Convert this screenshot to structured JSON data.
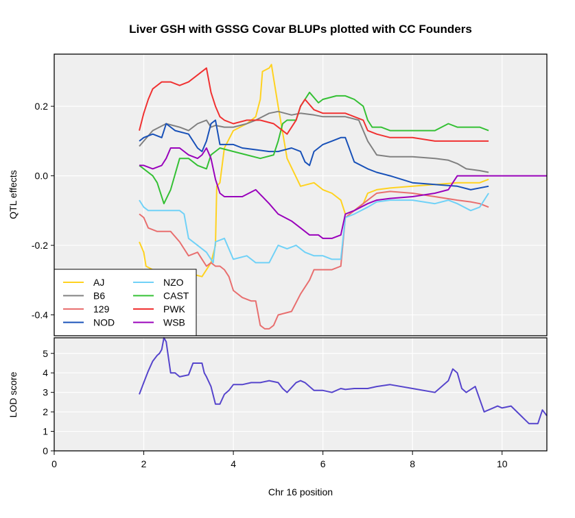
{
  "chart_data": {
    "title": "Liver GSH with GSSG Covar BLUPs plotted with CC Founders",
    "xlabel": "Chr 16 position",
    "xlim": [
      0,
      11
    ],
    "x_ticks": [
      "0",
      "2",
      "4",
      "6",
      "8",
      "10"
    ],
    "grid": true,
    "panels": [
      {
        "name": "effects",
        "type": "line",
        "ylabel": "QTL effects",
        "ylim": [
          -0.46,
          0.35
        ],
        "y_ticks": [
          "0.2",
          "0.0",
          "-0.2",
          "-0.4"
        ],
        "legend_position": "bottom-left",
        "series": [
          {
            "name": "AJ",
            "color": "#FFD21E",
            "x": [
              1.9,
              2.0,
              2.05,
              2.2,
              2.5,
              2.8,
              3.0,
              3.3,
              3.5,
              3.6,
              3.63,
              3.7,
              3.8,
              4.0,
              4.3,
              4.5,
              4.6,
              4.65,
              4.8,
              4.85,
              4.9,
              5.0,
              5.2,
              5.5,
              5.8,
              6.0,
              6.2,
              6.4,
              6.5,
              6.7,
              6.9,
              7.0,
              7.2,
              7.5,
              8.0,
              8.5,
              9.0,
              9.5,
              9.7
            ],
            "y": [
              -0.19,
              -0.22,
              -0.26,
              -0.27,
              -0.28,
              -0.28,
              -0.28,
              -0.29,
              -0.25,
              -0.2,
              -0.03,
              -0.02,
              0.08,
              0.13,
              0.15,
              0.17,
              0.22,
              0.3,
              0.31,
              0.32,
              0.28,
              0.2,
              0.05,
              -0.03,
              -0.02,
              -0.04,
              -0.05,
              -0.07,
              -0.11,
              -0.1,
              -0.08,
              -0.05,
              -0.04,
              -0.035,
              -0.03,
              -0.025,
              -0.02,
              -0.02,
              -0.01
            ]
          },
          {
            "name": "B6",
            "color": "#808080",
            "x": [
              1.9,
              2.0,
              2.2,
              2.5,
              2.8,
              3.0,
              3.2,
              3.4,
              3.5,
              3.6,
              3.8,
              4.0,
              4.3,
              4.5,
              4.8,
              5.0,
              5.3,
              5.5,
              5.8,
              6.0,
              6.3,
              6.5,
              6.8,
              7.0,
              7.2,
              7.5,
              8.0,
              8.5,
              8.8,
              9.0,
              9.2,
              9.5,
              9.7
            ],
            "y": [
              0.085,
              0.1,
              0.13,
              0.15,
              0.14,
              0.13,
              0.15,
              0.16,
              0.14,
              0.145,
              0.14,
              0.14,
              0.15,
              0.16,
              0.18,
              0.185,
              0.175,
              0.18,
              0.175,
              0.17,
              0.17,
              0.17,
              0.16,
              0.1,
              0.06,
              0.055,
              0.055,
              0.05,
              0.045,
              0.035,
              0.02,
              0.015,
              0.01
            ]
          },
          {
            "name": "129",
            "color": "#E86E6E",
            "x": [
              1.9,
              2.0,
              2.1,
              2.3,
              2.6,
              2.8,
              3.0,
              3.2,
              3.4,
              3.5,
              3.6,
              3.7,
              3.8,
              3.9,
              4.0,
              4.2,
              4.4,
              4.5,
              4.6,
              4.7,
              4.8,
              4.9,
              5.0,
              5.3,
              5.5,
              5.7,
              5.8,
              6.0,
              6.2,
              6.4,
              6.5,
              6.7,
              7.0,
              7.2,
              7.5,
              8.0,
              8.5,
              9.0,
              9.3,
              9.5,
              9.7
            ],
            "y": [
              -0.11,
              -0.12,
              -0.15,
              -0.16,
              -0.16,
              -0.19,
              -0.23,
              -0.22,
              -0.26,
              -0.25,
              -0.26,
              -0.26,
              -0.27,
              -0.29,
              -0.33,
              -0.35,
              -0.36,
              -0.36,
              -0.43,
              -0.44,
              -0.44,
              -0.43,
              -0.4,
              -0.39,
              -0.34,
              -0.3,
              -0.27,
              -0.27,
              -0.27,
              -0.26,
              -0.12,
              -0.1,
              -0.07,
              -0.05,
              -0.045,
              -0.05,
              -0.06,
              -0.07,
              -0.075,
              -0.08,
              -0.09
            ]
          },
          {
            "name": "NOD",
            "color": "#1750B8",
            "x": [
              1.9,
              2.0,
              2.2,
              2.4,
              2.5,
              2.7,
              3.0,
              3.2,
              3.3,
              3.4,
              3.5,
              3.6,
              3.7,
              4.0,
              4.2,
              4.5,
              4.8,
              5.0,
              5.3,
              5.5,
              5.6,
              5.7,
              5.8,
              6.0,
              6.2,
              6.4,
              6.5,
              6.7,
              7.0,
              7.2,
              7.5,
              8.0,
              8.5,
              9.0,
              9.3,
              9.7
            ],
            "y": [
              0.1,
              0.11,
              0.12,
              0.11,
              0.15,
              0.13,
              0.12,
              0.08,
              0.07,
              0.1,
              0.15,
              0.16,
              0.09,
              0.09,
              0.08,
              0.075,
              0.07,
              0.07,
              0.08,
              0.07,
              0.04,
              0.03,
              0.07,
              0.09,
              0.1,
              0.11,
              0.11,
              0.04,
              0.02,
              0.01,
              0.0,
              -0.02,
              -0.025,
              -0.03,
              -0.04,
              -0.03
            ]
          },
          {
            "name": "NZO",
            "color": "#6FD1F7",
            "x": [
              1.9,
              2.0,
              2.1,
              2.3,
              2.6,
              2.8,
              2.9,
              3.0,
              3.2,
              3.4,
              3.5,
              3.55,
              3.6,
              3.8,
              4.0,
              4.3,
              4.5,
              4.8,
              5.0,
              5.2,
              5.4,
              5.6,
              5.8,
              6.0,
              6.2,
              6.4,
              6.5,
              6.7,
              7.0,
              7.2,
              7.5,
              8.0,
              8.5,
              8.8,
              9.0,
              9.3,
              9.5,
              9.7
            ],
            "y": [
              -0.07,
              -0.09,
              -0.1,
              -0.1,
              -0.1,
              -0.1,
              -0.11,
              -0.18,
              -0.2,
              -0.22,
              -0.24,
              -0.25,
              -0.19,
              -0.18,
              -0.24,
              -0.23,
              -0.25,
              -0.25,
              -0.2,
              -0.21,
              -0.2,
              -0.22,
              -0.23,
              -0.23,
              -0.24,
              -0.24,
              -0.12,
              -0.11,
              -0.09,
              -0.075,
              -0.07,
              -0.07,
              -0.08,
              -0.07,
              -0.08,
              -0.1,
              -0.09,
              -0.05
            ]
          },
          {
            "name": "CAST",
            "color": "#33C033",
            "x": [
              1.9,
              2.0,
              2.2,
              2.3,
              2.45,
              2.6,
              2.8,
              3.0,
              3.2,
              3.4,
              3.5,
              3.7,
              4.0,
              4.3,
              4.6,
              4.9,
              5.0,
              5.1,
              5.2,
              5.4,
              5.5,
              5.6,
              5.7,
              5.9,
              6.0,
              6.3,
              6.5,
              6.7,
              6.9,
              7.0,
              7.1,
              7.3,
              7.5,
              8.0,
              8.5,
              8.8,
              9.0,
              9.3,
              9.5,
              9.7
            ],
            "y": [
              0.03,
              0.02,
              0.0,
              -0.02,
              -0.08,
              -0.04,
              0.05,
              0.05,
              0.03,
              0.02,
              0.06,
              0.08,
              0.07,
              0.06,
              0.05,
              0.06,
              0.1,
              0.15,
              0.16,
              0.16,
              0.2,
              0.22,
              0.24,
              0.21,
              0.22,
              0.23,
              0.23,
              0.22,
              0.2,
              0.16,
              0.14,
              0.14,
              0.13,
              0.13,
              0.13,
              0.15,
              0.14,
              0.14,
              0.14,
              0.13
            ]
          },
          {
            "name": "PWK",
            "color": "#F03030",
            "x": [
              1.9,
              2.0,
              2.1,
              2.2,
              2.4,
              2.6,
              2.8,
              3.0,
              3.2,
              3.4,
              3.5,
              3.6,
              3.7,
              3.8,
              4.0,
              4.3,
              4.6,
              4.9,
              5.0,
              5.2,
              5.4,
              5.5,
              5.6,
              5.8,
              6.0,
              6.3,
              6.5,
              6.7,
              6.9,
              7.0,
              7.2,
              7.5,
              8.0,
              8.5,
              9.0,
              9.3,
              9.5,
              9.7
            ],
            "y": [
              0.13,
              0.18,
              0.22,
              0.25,
              0.27,
              0.27,
              0.26,
              0.27,
              0.29,
              0.31,
              0.24,
              0.2,
              0.17,
              0.16,
              0.15,
              0.16,
              0.16,
              0.15,
              0.14,
              0.12,
              0.16,
              0.2,
              0.22,
              0.19,
              0.18,
              0.18,
              0.18,
              0.17,
              0.16,
              0.13,
              0.12,
              0.11,
              0.11,
              0.1,
              0.1,
              0.1,
              0.1,
              0.1
            ]
          },
          {
            "name": "WSB",
            "color": "#9900BB",
            "x": [
              1.9,
              2.0,
              2.2,
              2.4,
              2.5,
              2.6,
              2.8,
              3.0,
              3.2,
              3.3,
              3.4,
              3.5,
              3.6,
              3.7,
              3.8,
              4.0,
              4.2,
              4.5,
              4.8,
              5.0,
              5.3,
              5.5,
              5.7,
              5.9,
              6.0,
              6.2,
              6.4,
              6.5,
              6.7,
              7.0,
              7.2,
              7.5,
              8.0,
              8.5,
              8.8,
              8.9,
              9.0,
              9.3,
              9.5,
              9.7
            ],
            "y": [
              0.03,
              0.03,
              0.02,
              0.03,
              0.05,
              0.08,
              0.08,
              0.06,
              0.05,
              0.06,
              0.08,
              0.05,
              -0.01,
              -0.05,
              -0.06,
              -0.06,
              -0.06,
              -0.04,
              -0.08,
              -0.11,
              -0.13,
              -0.15,
              -0.17,
              -0.17,
              -0.18,
              -0.18,
              -0.17,
              -0.11,
              -0.1,
              -0.08,
              -0.07,
              -0.065,
              -0.06,
              -0.05,
              -0.04,
              -0.02,
              0.0,
              0.0,
              0.0,
              0.0
            ]
          }
        ],
        "tail": {
          "from": 9.7,
          "to": 11,
          "y": 0.0,
          "color": "#9900BB"
        }
      },
      {
        "name": "lod",
        "type": "line",
        "ylabel": "LOD score",
        "ylim": [
          0,
          5.8
        ],
        "y_ticks": [
          "5",
          "4",
          "3",
          "2",
          "1",
          "0"
        ],
        "series": [
          {
            "name": "LOD",
            "color": "#5544CC",
            "x": [
              1.9,
              2.0,
              2.1,
              2.2,
              2.3,
              2.35,
              2.4,
              2.45,
              2.5,
              2.55,
              2.6,
              2.7,
              2.8,
              3.0,
              3.1,
              3.2,
              3.3,
              3.35,
              3.4,
              3.5,
              3.6,
              3.7,
              3.8,
              3.9,
              4.0,
              4.2,
              4.4,
              4.6,
              4.8,
              5.0,
              5.1,
              5.2,
              5.4,
              5.5,
              5.6,
              5.7,
              5.8,
              6.0,
              6.2,
              6.4,
              6.5,
              6.7,
              7.0,
              7.2,
              7.5,
              8.0,
              8.5,
              8.8,
              8.9,
              9.0,
              9.1,
              9.2,
              9.4,
              9.6,
              9.8,
              9.9,
              10.0,
              10.2,
              10.6,
              10.8,
              10.9,
              11.0
            ],
            "y": [
              2.9,
              3.5,
              4.1,
              4.6,
              4.9,
              5.0,
              5.2,
              5.8,
              5.6,
              4.8,
              4.0,
              4.0,
              3.8,
              3.9,
              4.5,
              4.5,
              4.5,
              4.0,
              3.8,
              3.3,
              2.4,
              2.4,
              2.9,
              3.1,
              3.4,
              3.4,
              3.5,
              3.5,
              3.6,
              3.5,
              3.2,
              3.0,
              3.5,
              3.6,
              3.5,
              3.3,
              3.1,
              3.1,
              3.0,
              3.2,
              3.15,
              3.2,
              3.2,
              3.3,
              3.4,
              3.2,
              3.0,
              3.6,
              4.2,
              4.0,
              3.2,
              3.0,
              3.3,
              2.0,
              2.2,
              2.3,
              2.2,
              2.3,
              1.4,
              1.4,
              2.1,
              1.8
            ]
          }
        ]
      }
    ]
  }
}
